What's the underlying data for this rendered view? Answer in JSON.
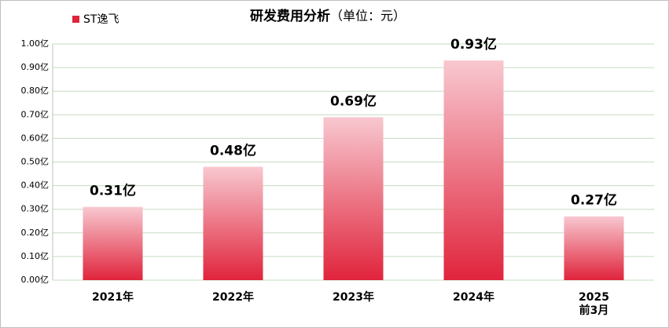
{
  "chart_data": {
    "type": "bar",
    "title": "研发费用分析",
    "subtitle": "（单位：元）",
    "categories": [
      "2021年",
      "2022年",
      "2023年",
      "2024年",
      "2025\n前3月"
    ],
    "series": [
      {
        "name": "ST逸飞",
        "color": "#e0243c",
        "values": [
          0.31,
          0.48,
          0.69,
          0.93,
          0.27
        ],
        "value_labels": [
          "0.31亿",
          "0.48亿",
          "0.69亿",
          "0.93亿",
          "0.27亿"
        ]
      }
    ],
    "ylim": [
      0,
      1
    ],
    "yticks": [
      {
        "value": 0,
        "label": "0.00亿"
      },
      {
        "value": 0.1,
        "label": "0.10亿"
      },
      {
        "value": 0.2,
        "label": "0.20亿"
      },
      {
        "value": 0.3,
        "label": "0.30亿"
      },
      {
        "value": 0.4,
        "label": "0.40亿"
      },
      {
        "value": 0.5,
        "label": "0.50亿"
      },
      {
        "value": 0.6,
        "label": "0.60亿"
      },
      {
        "value": 0.7,
        "label": "0.70亿"
      },
      {
        "value": 0.8,
        "label": "0.80亿"
      },
      {
        "value": 0.9,
        "label": "0.90亿"
      },
      {
        "value": 1,
        "label": "1.00亿"
      }
    ],
    "grid": true
  }
}
